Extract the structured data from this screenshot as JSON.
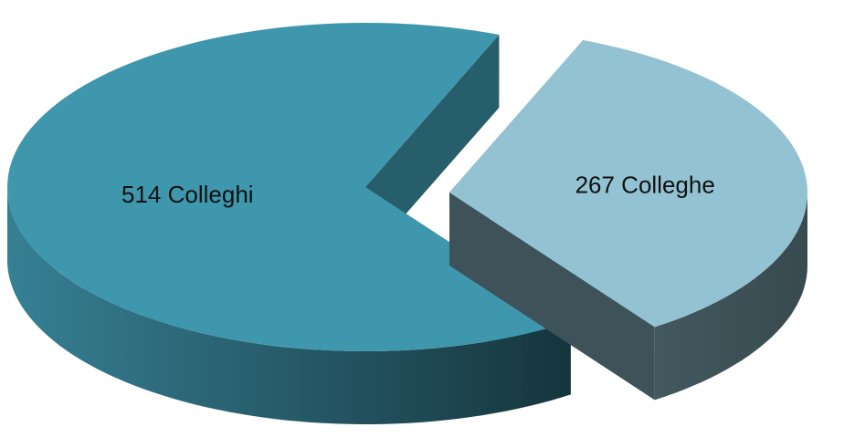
{
  "chart_data": {
    "type": "pie",
    "values": [
      514,
      267
    ],
    "value_labels": [
      "514 Colleghi",
      "267 Colleghe"
    ],
    "colors": [
      "#3f97ae",
      "#93c3d3"
    ]
  }
}
